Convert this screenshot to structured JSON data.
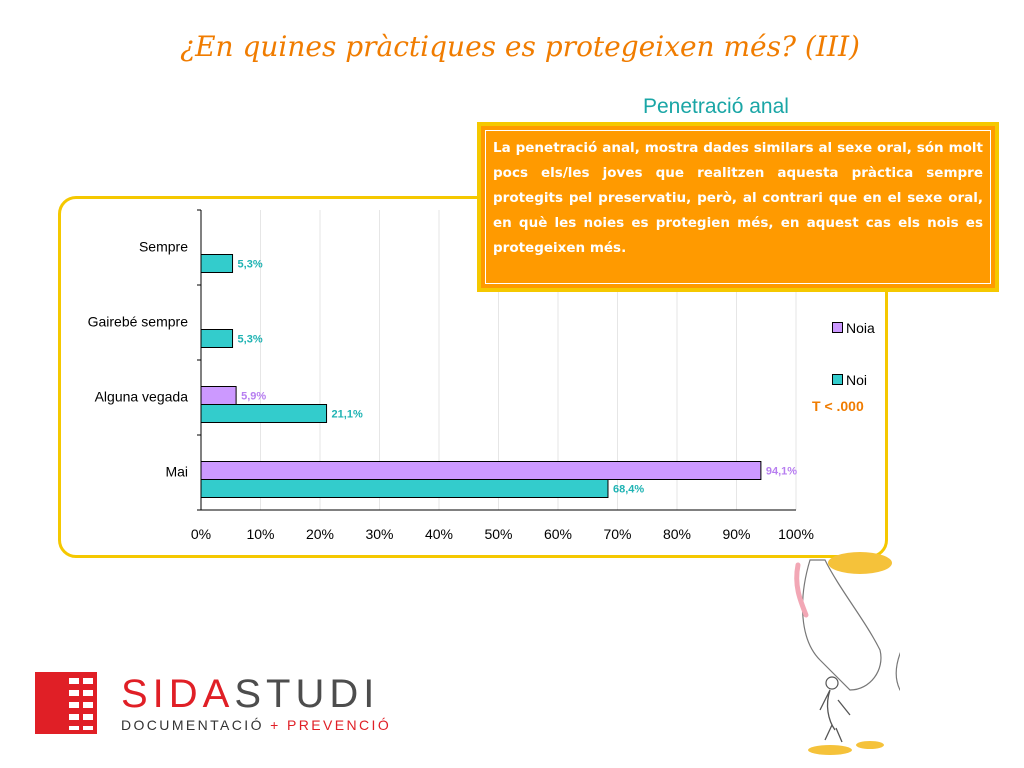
{
  "title": "¿En quines pràctiques es protegeixen més? (III)",
  "subtitle": "Penetració anal",
  "callout": "La penetració anal, mostra dades similars al sexe oral, són molt pocs els/les joves que realitzen aquesta pràctica sempre protegits pel preservatiu, però, al contrari que en el sexe oral, en què les noies es protegien més, en aquest cas els nois es protegeixen més.",
  "significance": "T < .000",
  "colors": {
    "noia": "#cc99ff",
    "noi": "#33cccc",
    "accent": "#f07c00",
    "frame": "#f5c800",
    "callout": "#ff9a00"
  },
  "chart_data": {
    "type": "bar",
    "orientation": "horizontal",
    "categories": [
      "Sempre",
      "Gairebé sempre",
      "Alguna vegada",
      "Mai"
    ],
    "series": [
      {
        "name": "Noia",
        "values": [
          null,
          null,
          5.9,
          94.1
        ],
        "labels": [
          "",
          "",
          "5,9%",
          "94,1%"
        ]
      },
      {
        "name": "Noi",
        "values": [
          5.3,
          5.3,
          21.1,
          68.4
        ],
        "labels": [
          "5,3%",
          "5,3%",
          "21,1%",
          "68,4%"
        ]
      }
    ],
    "xlim": [
      0,
      100
    ],
    "xticks": [
      "0%",
      "10%",
      "20%",
      "30%",
      "40%",
      "50%",
      "60%",
      "70%",
      "80%",
      "90%",
      "100%"
    ],
    "grid": true,
    "legend": "right"
  },
  "logo": {
    "name_red": "SIDA",
    "name_grey": "STUDI",
    "tag_left": "DOCUMENTACIÓ",
    "tag_plus": "+",
    "tag_right": "PREVENCIÓ"
  }
}
